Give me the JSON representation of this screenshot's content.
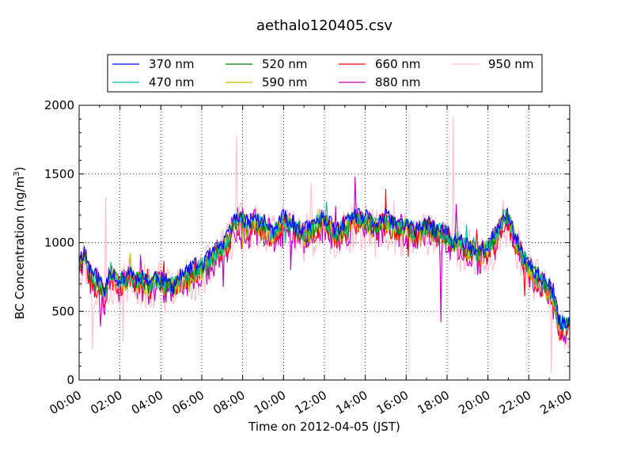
{
  "chart_data": {
    "type": "line",
    "title": "aethalo120405.csv",
    "xlabel": "Time on 2012-04-05 (JST)",
    "ylabel": "BC Concentration (ng/m",
    "ylabel_sup": "3",
    "ylabel_close": ")",
    "xlim": [
      "00:00",
      "24:00"
    ],
    "ylim": [
      0,
      2000
    ],
    "xticks": [
      "00:00",
      "02:00",
      "04:00",
      "06:00",
      "08:00",
      "10:00",
      "12:00",
      "14:00",
      "16:00",
      "18:00",
      "20:00",
      "22:00",
      "24:00"
    ],
    "yticks": [
      "0",
      "500",
      "1000",
      "1500",
      "2000"
    ],
    "grid": true,
    "legend_position": "top (above plot)",
    "anchors": {
      "x_hours": [
        0,
        0.25,
        0.5,
        0.75,
        1,
        1.25,
        1.5,
        1.75,
        2,
        2.25,
        2.5,
        2.75,
        3,
        3.25,
        3.5,
        3.75,
        4,
        4.5,
        5,
        5.5,
        6,
        6.5,
        7,
        7.25,
        7.5,
        7.75,
        8,
        8.25,
        8.5,
        9,
        9.5,
        10,
        10.5,
        11,
        11.5,
        12,
        12.5,
        13,
        13.5,
        14,
        14.5,
        15,
        15.5,
        16,
        16.5,
        17,
        17.5,
        18,
        18.25,
        18.5,
        19,
        19.5,
        20,
        20.5,
        20.75,
        21,
        21.5,
        22,
        22.5,
        23,
        23.25,
        23.5,
        24
      ],
      "base": [
        850,
        900,
        780,
        720,
        700,
        600,
        780,
        720,
        680,
        720,
        760,
        700,
        720,
        700,
        680,
        720,
        700,
        660,
        720,
        780,
        800,
        880,
        950,
        1000,
        1100,
        1150,
        1150,
        1100,
        1150,
        1100,
        1050,
        1150,
        1100,
        1050,
        1100,
        1150,
        1050,
        1100,
        1150,
        1150,
        1100,
        1150,
        1100,
        1100,
        1050,
        1100,
        1050,
        1050,
        950,
        1000,
        950,
        900,
        950,
        1050,
        1180,
        1150,
        950,
        800,
        720,
        650,
        550,
        380,
        390
      ]
    },
    "series": [
      {
        "name": "370 nm",
        "color": "#0000ff",
        "offset": 40,
        "noise": 60,
        "seed": 11
      },
      {
        "name": "470 nm",
        "color": "#00bfa5",
        "offset": 25,
        "noise": 65,
        "seed": 23
      },
      {
        "name": "520 nm",
        "color": "#008000",
        "offset": 10,
        "noise": 70,
        "seed": 37
      },
      {
        "name": "590 nm",
        "color": "#bfbf00",
        "offset": 0,
        "noise": 80,
        "seed": 51
      },
      {
        "name": "660 nm",
        "color": "#ff0000",
        "offset": -10,
        "noise": 90,
        "seed": 67
      },
      {
        "name": "880 nm",
        "color": "#bf00bf",
        "offset": -20,
        "noise": 130,
        "seed": 83
      },
      {
        "name": "950 nm",
        "color": "#ffc0cb",
        "offset": -30,
        "noise": 180,
        "seed": 97
      }
    ],
    "spikes": [
      {
        "series": "950 nm",
        "hour": 7.7,
        "value": 1780
      },
      {
        "series": "950 nm",
        "hour": 18.3,
        "value": 1920
      },
      {
        "series": "950 nm",
        "hour": 1.3,
        "value": 1330
      },
      {
        "series": "880 nm",
        "hour": 13.5,
        "value": 1480
      },
      {
        "series": "880 nm",
        "hour": 17.7,
        "value": 420
      },
      {
        "series": "950 nm",
        "hour": 23.1,
        "value": 50
      }
    ]
  }
}
